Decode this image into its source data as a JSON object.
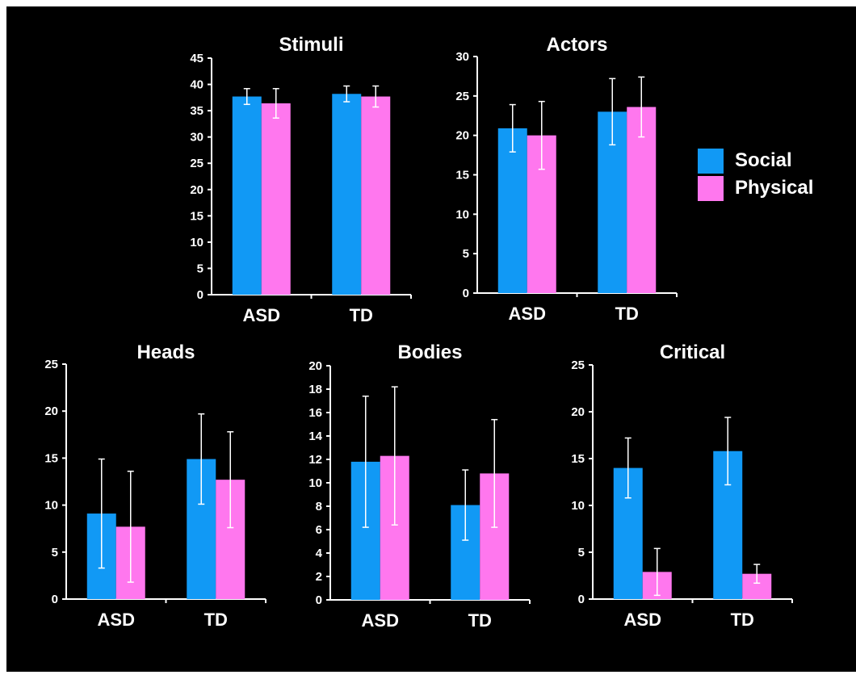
{
  "colors": {
    "background": "#000000",
    "social": "#1199f5",
    "physical": "#ff77ee",
    "axis": "#ffffff"
  },
  "legend": {
    "social": "Social",
    "physical": "Physical"
  },
  "chart_data": [
    {
      "type": "bar",
      "title": "Stimuli",
      "categories": [
        "ASD",
        "TD"
      ],
      "ylim": [
        0,
        45
      ],
      "ytick_step": 5,
      "series": [
        {
          "name": "Social",
          "values": [
            37.7,
            38.2
          ],
          "errors": [
            1.5,
            1.5
          ]
        },
        {
          "name": "Physical",
          "values": [
            36.4,
            37.7
          ],
          "errors": [
            2.8,
            2.0
          ]
        }
      ]
    },
    {
      "type": "bar",
      "title": "Actors",
      "categories": [
        "ASD",
        "TD"
      ],
      "ylim": [
        0,
        30
      ],
      "ytick_step": 5,
      "series": [
        {
          "name": "Social",
          "values": [
            20.9,
            23.0
          ],
          "errors": [
            3.0,
            4.2
          ]
        },
        {
          "name": "Physical",
          "values": [
            20.0,
            23.6
          ],
          "errors": [
            4.3,
            3.8
          ]
        }
      ]
    },
    {
      "type": "bar",
      "title": "Heads",
      "categories": [
        "ASD",
        "TD"
      ],
      "ylim": [
        0,
        25
      ],
      "ytick_step": 5,
      "series": [
        {
          "name": "Social",
          "values": [
            9.1,
            14.9
          ],
          "errors": [
            5.8,
            4.8
          ]
        },
        {
          "name": "Physical",
          "values": [
            7.7,
            12.7
          ],
          "errors": [
            5.9,
            5.1
          ]
        }
      ]
    },
    {
      "type": "bar",
      "title": "Bodies",
      "categories": [
        "ASD",
        "TD"
      ],
      "ylim": [
        0,
        20
      ],
      "ytick_step": 2,
      "series": [
        {
          "name": "Social",
          "values": [
            11.8,
            8.1
          ],
          "errors": [
            5.6,
            3.0
          ]
        },
        {
          "name": "Physical",
          "values": [
            12.3,
            10.8
          ],
          "errors": [
            5.9,
            4.6
          ]
        }
      ]
    },
    {
      "type": "bar",
      "title": "Critical",
      "categories": [
        "ASD",
        "TD"
      ],
      "ylim": [
        0,
        25
      ],
      "ytick_step": 5,
      "series": [
        {
          "name": "Social",
          "values": [
            14.0,
            15.8
          ],
          "errors": [
            3.2,
            3.6
          ]
        },
        {
          "name": "Physical",
          "values": [
            2.9,
            2.7
          ],
          "errors": [
            2.5,
            1.0
          ]
        }
      ]
    }
  ]
}
